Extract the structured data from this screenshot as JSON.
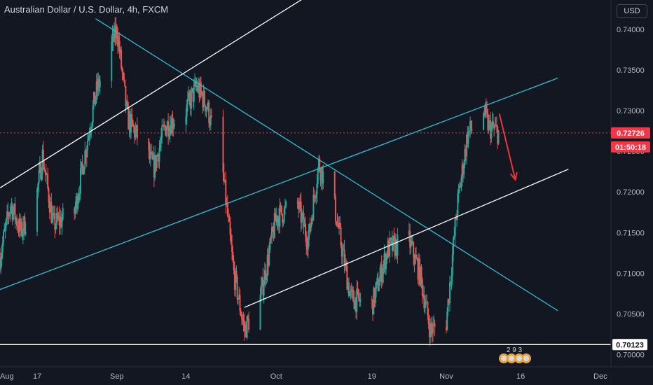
{
  "header": {
    "title": "Australian Dollar / U.S. Dollar, 4h, FXCM",
    "currency_button": "USD"
  },
  "price_badges": {
    "last_price": "0.72726",
    "countdown": "01:50:18",
    "level": "0.70123"
  },
  "logo_counter": "2 9 3",
  "colors": {
    "background": "#131722",
    "up_candle": "#26a69a",
    "down_candle": "#ef5350",
    "cyan_line": "#2fbcd0",
    "white_line": "#ffffff",
    "arrow": "#e53935",
    "last_price_badge": "#f23645"
  },
  "chart_data": {
    "type": "candlestick",
    "title": "Australian Dollar / U.S. Dollar, 4h, FXCM",
    "y_ticks": [
      0.74,
      0.735,
      0.73,
      0.725,
      0.72,
      0.715,
      0.71,
      0.705,
      0.7
    ],
    "y_tick_labels": [
      "0.74000",
      "0.73500",
      "0.73000",
      "0.72500",
      "0.72000",
      "0.71500",
      "0.71000",
      "0.70500",
      "0.70000"
    ],
    "ylim": [
      0.6985,
      0.7436
    ],
    "x_ticks": [
      {
        "label": "Aug",
        "date": "2020-08-10"
      },
      {
        "label": "17",
        "date": "2020-08-17"
      },
      {
        "label": "Sep",
        "date": "2020-09-01"
      },
      {
        "label": "14",
        "date": "2020-09-14"
      },
      {
        "label": "Oct",
        "date": "2020-10-01"
      },
      {
        "label": "19",
        "date": "2020-10-19"
      },
      {
        "label": "Nov",
        "date": "2020-11-02"
      },
      {
        "label": "16",
        "date": "2020-11-16"
      },
      {
        "label": "Dec",
        "date": "2020-12-01"
      }
    ],
    "xlim": [
      "2020-08-10",
      "2020-12-03"
    ],
    "last_price": 0.72726,
    "horizontal_level": 0.70123,
    "price_path": [
      {
        "date": "2020-08-10",
        "close": 0.712
      },
      {
        "date": "2020-08-12",
        "close": 0.7185
      },
      {
        "date": "2020-08-14",
        "close": 0.715
      },
      {
        "date": "2020-08-17",
        "close": 0.72
      },
      {
        "date": "2020-08-18",
        "close": 0.7245
      },
      {
        "date": "2020-08-20",
        "close": 0.716
      },
      {
        "date": "2020-08-24",
        "close": 0.7175
      },
      {
        "date": "2020-08-28",
        "close": 0.732
      },
      {
        "date": "2020-09-01",
        "close": 0.74
      },
      {
        "date": "2020-09-03",
        "close": 0.729
      },
      {
        "date": "2020-09-08",
        "close": 0.723
      },
      {
        "date": "2020-09-10",
        "close": 0.728
      },
      {
        "date": "2020-09-14",
        "close": 0.73
      },
      {
        "date": "2020-09-16",
        "close": 0.733
      },
      {
        "date": "2020-09-18",
        "close": 0.7305
      },
      {
        "date": "2020-09-21",
        "close": 0.722
      },
      {
        "date": "2020-09-23",
        "close": 0.71
      },
      {
        "date": "2020-09-25",
        "close": 0.703
      },
      {
        "date": "2020-09-28",
        "close": 0.707
      },
      {
        "date": "2020-10-01",
        "close": 0.717
      },
      {
        "date": "2020-10-05",
        "close": 0.7185
      },
      {
        "date": "2020-10-07",
        "close": 0.714
      },
      {
        "date": "2020-10-09",
        "close": 0.7235
      },
      {
        "date": "2020-10-12",
        "close": 0.718
      },
      {
        "date": "2020-10-15",
        "close": 0.707
      },
      {
        "date": "2020-10-19",
        "close": 0.706
      },
      {
        "date": "2020-10-22",
        "close": 0.713
      },
      {
        "date": "2020-10-26",
        "close": 0.714
      },
      {
        "date": "2020-10-28",
        "close": 0.71
      },
      {
        "date": "2020-10-30",
        "close": 0.703
      },
      {
        "date": "2020-11-02",
        "close": 0.704
      },
      {
        "date": "2020-11-04",
        "close": 0.718
      },
      {
        "date": "2020-11-06",
        "close": 0.727
      },
      {
        "date": "2020-11-09",
        "close": 0.73
      },
      {
        "date": "2020-11-10",
        "close": 0.728
      },
      {
        "date": "2020-11-12",
        "close": 0.72726
      }
    ],
    "trendlines": [
      {
        "color": "cyan",
        "from": {
          "date": "2020-08-10",
          "price": 0.708
        },
        "to": {
          "date": "2020-11-23",
          "price": 0.734
        }
      },
      {
        "color": "cyan",
        "from": {
          "date": "2020-08-28",
          "price": 0.7413
        },
        "to": {
          "date": "2020-11-23",
          "price": 0.7054
        }
      },
      {
        "color": "white",
        "from": {
          "date": "2020-08-10",
          "price": 0.7205
        },
        "to": {
          "date": "2020-10-14",
          "price": 0.747
        }
      },
      {
        "color": "white",
        "from": {
          "date": "2020-09-25",
          "price": 0.7058
        },
        "to": {
          "date": "2020-11-25",
          "price": 0.7228
        }
      }
    ],
    "annotation_arrow": {
      "color": "red",
      "from": {
        "date": "2020-11-12",
        "price": 0.7296
      },
      "to": {
        "date": "2020-11-15",
        "price": 0.7215
      }
    },
    "grid": false,
    "legend": "none"
  }
}
